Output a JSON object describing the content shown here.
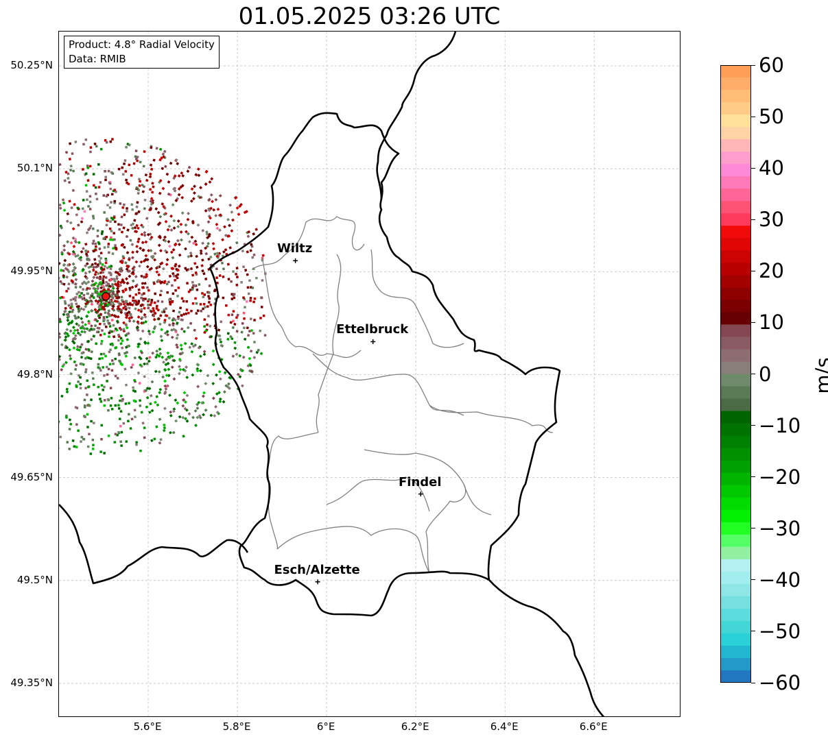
{
  "title": "01.05.2025 03:26 UTC",
  "info": {
    "product": "Product: 4.8° Radial Velocity",
    "data": "Data: RMIB"
  },
  "axes": {
    "lat_ticks": [
      "50.25°N",
      "50.1°N",
      "49.95°N",
      "49.8°N",
      "49.65°N",
      "49.5°N",
      "49.35°N"
    ],
    "lon_ticks": [
      "5.6°E",
      "5.8°E",
      "6°E",
      "6.2°E",
      "6.4°E",
      "6.6°E"
    ],
    "gridlines": true
  },
  "places": [
    {
      "name": "Wiltz",
      "lon": 5.93,
      "lat": 49.966
    },
    {
      "name": "Ettelbruck",
      "lon": 6.104,
      "lat": 49.848
    },
    {
      "name": "Findel",
      "lon": 6.211,
      "lat": 49.626
    },
    {
      "name": "Esch/Alzette",
      "lon": 5.98,
      "lat": 49.498
    }
  ],
  "radar": {
    "lon": 5.505,
    "lat": 49.914,
    "marker_color": "#e8140e"
  },
  "colorbar": {
    "ticks": [
      "60",
      "50",
      "40",
      "30",
      "20",
      "10",
      "0",
      "−10",
      "−20",
      "−30",
      "−40",
      "−50",
      "−60"
    ],
    "unit": "m/s",
    "colors_top_to_bottom": [
      "#ff9f57",
      "#ffad68",
      "#ffbd78",
      "#ffcc88",
      "#ffe199",
      "#ffd3a6",
      "#ffb6b6",
      "#ff9dcc",
      "#ff8ad8",
      "#ff78b8",
      "#ff6596",
      "#ff5275",
      "#ff3b5c",
      "#f00a0a",
      "#e00606",
      "#cc0303",
      "#b80000",
      "#a30000",
      "#8e0000",
      "#7a0000",
      "#660000",
      "#844650",
      "#8a5a64",
      "#8d6c72",
      "#8a7e7a",
      "#6f8a6a",
      "#5a7a55",
      "#4b6b45",
      "#006400",
      "#007200",
      "#008000",
      "#009000",
      "#00a000",
      "#00b400",
      "#00c800",
      "#00dc00",
      "#00f000",
      "#22ff22",
      "#55ff66",
      "#90f0a0",
      "#b4f0f0",
      "#a2eeee",
      "#8ee6e6",
      "#76e0e0",
      "#5cdcdc",
      "#42d6d6",
      "#2ad2d8",
      "#21b7cf",
      "#2399c8",
      "#2178c0"
    ]
  },
  "colors": {
    "border": "#000000",
    "admin_line": "#808080",
    "grid": "#c0c0c0"
  }
}
